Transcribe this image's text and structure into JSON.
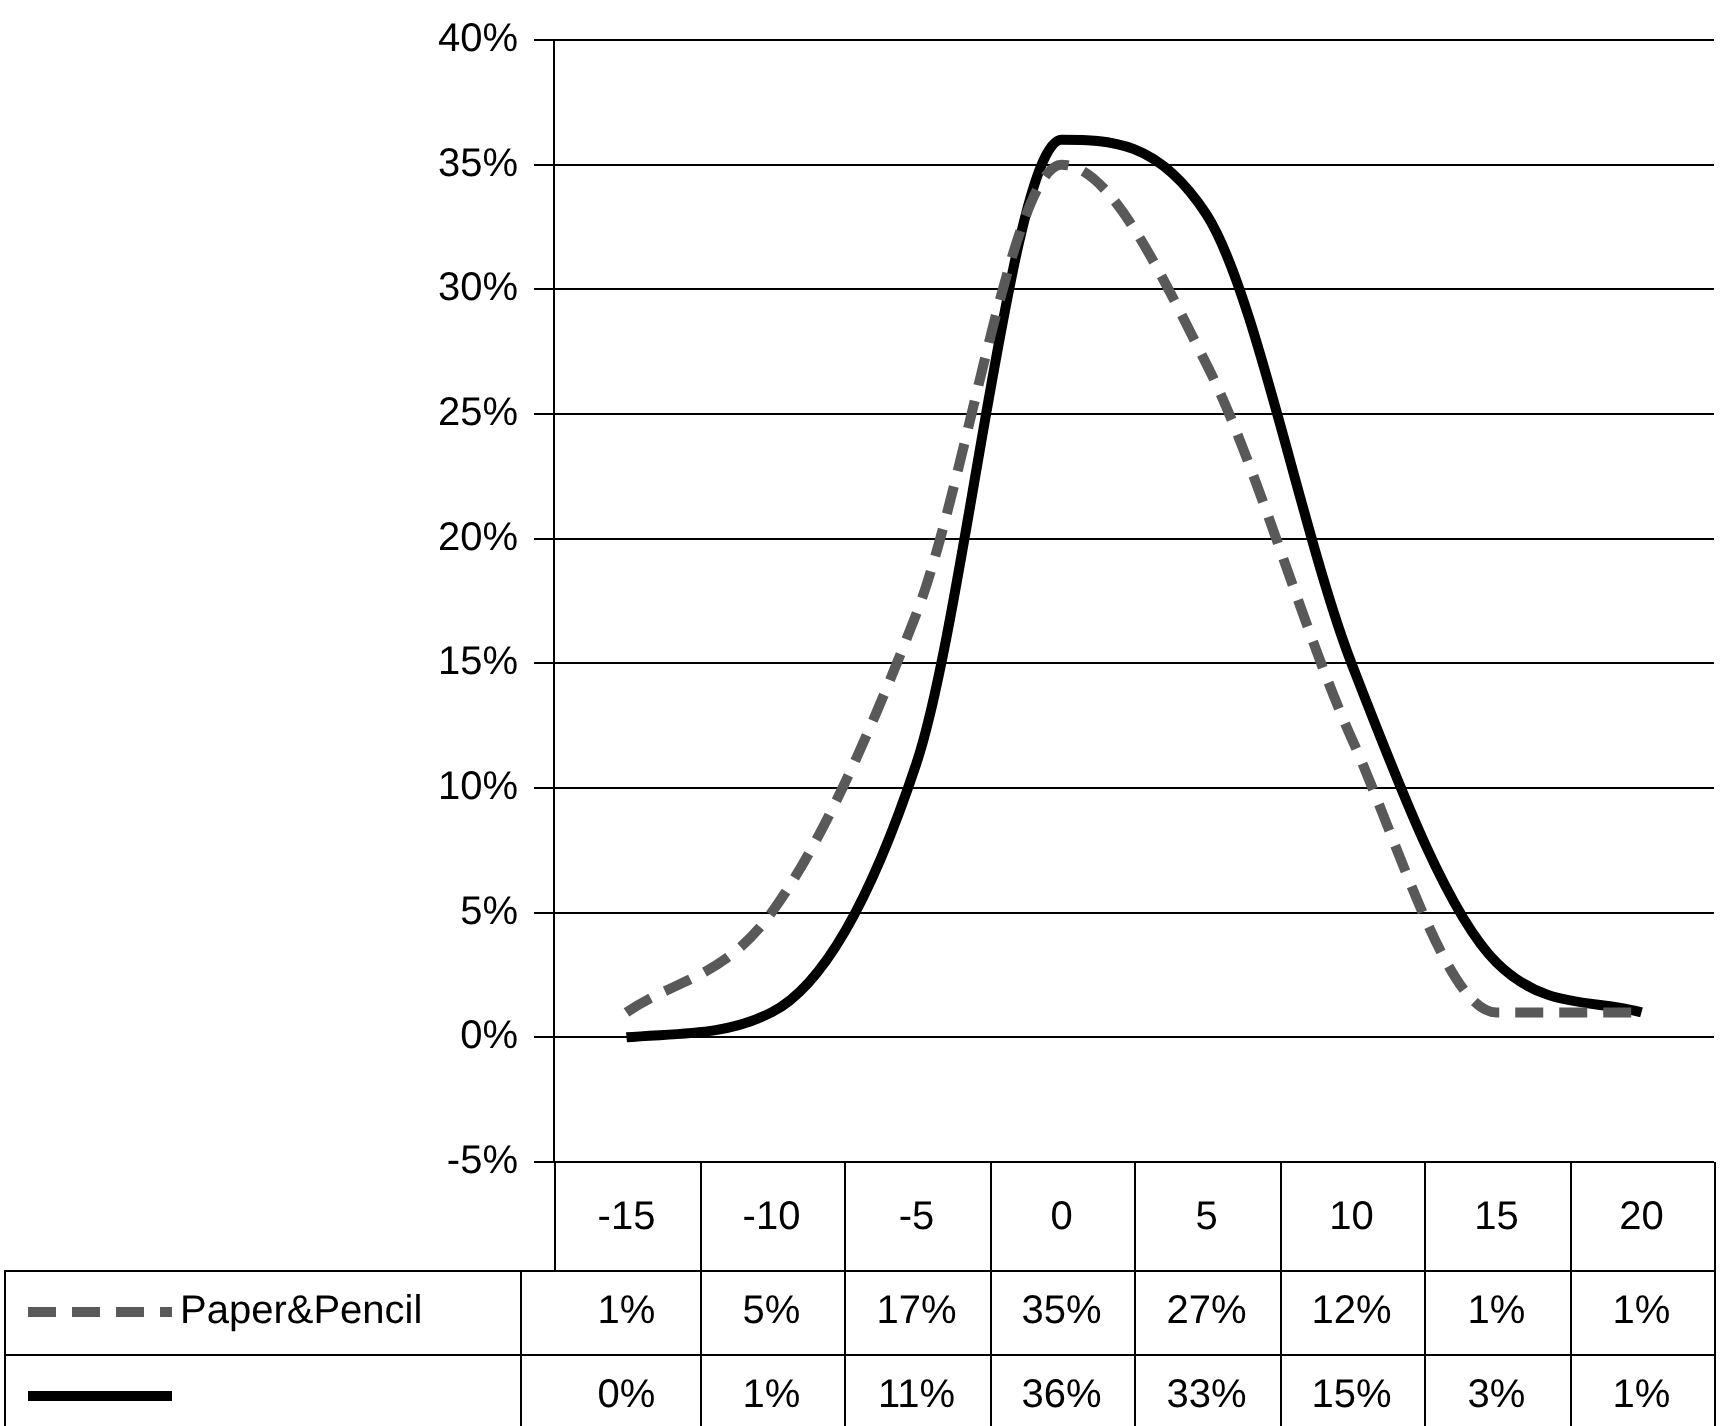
{
  "chart_data": {
    "type": "line",
    "categories": [
      "-15",
      "-10",
      "-5",
      "0",
      "5",
      "10",
      "15",
      "20"
    ],
    "series": [
      {
        "name": "Paper&Pencil",
        "color": "#595959",
        "line_style": "dashed",
        "values": [
          1,
          5,
          17,
          35,
          27,
          12,
          1,
          1
        ],
        "value_labels": [
          "1%",
          "5%",
          "17%",
          "35%",
          "27%",
          "12%",
          "1%",
          "1%"
        ]
      },
      {
        "color": "#000000",
        "line_style": "solid",
        "values": [
          0,
          1,
          11,
          36,
          33,
          15,
          3,
          1
        ],
        "value_labels": [
          "0%",
          "1%",
          "11%",
          "36%",
          "33%",
          "15%",
          "3%",
          "1%"
        ]
      }
    ],
    "ylim": [
      -5,
      40
    ],
    "yticks": [
      {
        "value": -5,
        "label": "-5%"
      },
      {
        "value": 0,
        "label": "0%"
      },
      {
        "value": 5,
        "label": "5%"
      },
      {
        "value": 10,
        "label": "10%"
      },
      {
        "value": 15,
        "label": "15%"
      },
      {
        "value": 20,
        "label": "20%"
      },
      {
        "value": 25,
        "label": "25%"
      },
      {
        "value": 30,
        "label": "30%"
      },
      {
        "value": 35,
        "label": "35%"
      },
      {
        "value": 40,
        "label": "40%"
      }
    ],
    "grid": "y",
    "legend": "bottom",
    "marker": "none"
  }
}
